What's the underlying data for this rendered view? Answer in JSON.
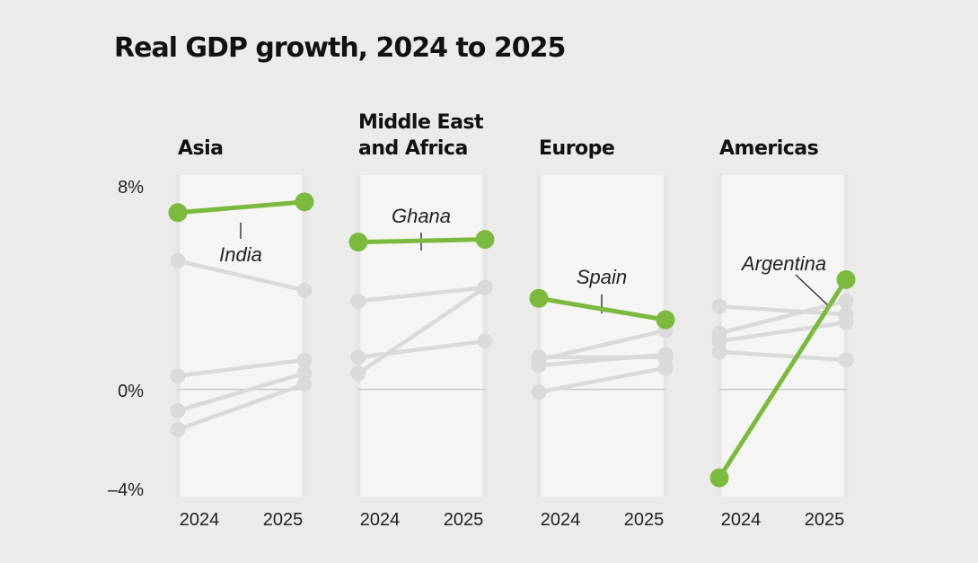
{
  "chart_data": {
    "type": "line",
    "title": "Real GDP growth, 2024 to 2025",
    "x": [
      "2024",
      "2025"
    ],
    "yticks": [
      "8%",
      "0%",
      "–4%"
    ],
    "ylim": [
      -4,
      8
    ],
    "colors": {
      "highlight": "#7cba3f",
      "background": "#e6e6e5",
      "panel": "#f5f5f4",
      "context": "#dadada"
    },
    "panels": [
      {
        "region_lines": [
          "Asia"
        ],
        "highlight": {
          "name": "India",
          "values": [
            6.6,
            7.0
          ]
        },
        "others": [
          [
            4.8,
            3.7
          ],
          [
            0.5,
            1.1
          ],
          [
            -0.8,
            0.6
          ],
          [
            -1.5,
            0.2
          ]
        ]
      },
      {
        "region_lines": [
          "Middle East",
          "and Africa"
        ],
        "highlight": {
          "name": "Ghana",
          "values": [
            5.5,
            5.6
          ]
        },
        "others": [
          [
            3.3,
            3.8
          ],
          [
            1.2,
            1.8
          ],
          [
            0.6,
            3.8
          ]
        ]
      },
      {
        "region_lines": [
          "Europe"
        ],
        "highlight": {
          "name": "Spain",
          "values": [
            3.4,
            2.6
          ]
        },
        "others": [
          [
            1.1,
            2.2
          ],
          [
            1.2,
            1.2
          ],
          [
            0.9,
            1.3
          ],
          [
            -0.1,
            0.8
          ]
        ]
      },
      {
        "region_lines": [
          "Americas"
        ],
        "highlight": {
          "name": "Argentina",
          "values": [
            -3.3,
            4.1
          ]
        },
        "others": [
          [
            3.1,
            2.8
          ],
          [
            2.1,
            3.3
          ],
          [
            1.8,
            2.5
          ],
          [
            1.4,
            1.1
          ]
        ]
      }
    ]
  }
}
